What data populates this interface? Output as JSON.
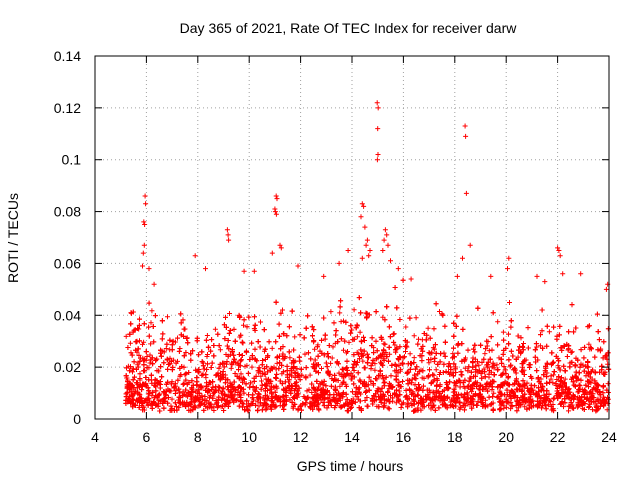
{
  "chart_data": {
    "type": "scatter",
    "title": "Day 365 of 2021, Rate Of TEC Index for receiver darw",
    "xlabel": "GPS time / hours",
    "ylabel": "ROTI / TECUs",
    "xlim": [
      4,
      24
    ],
    "ylim": [
      0,
      0.14
    ],
    "x_ticks": [
      4,
      6,
      8,
      10,
      12,
      14,
      16,
      18,
      20,
      22,
      24
    ],
    "x_tick_labels": [
      "4",
      "6",
      "8",
      "10",
      "12",
      "14",
      "16",
      "18",
      "20",
      "22",
      "24"
    ],
    "y_ticks": [
      0,
      0.02,
      0.04,
      0.06,
      0.08,
      0.1,
      0.12,
      0.14
    ],
    "y_tick_labels": [
      "0",
      "0.02",
      "0.04",
      "0.06",
      "0.08",
      "0.1",
      "0.12",
      "0.14"
    ],
    "grid": true,
    "marker": "+",
    "marker_color": "#ff0000",
    "x_data_range": [
      5.2,
      24
    ],
    "typical_roti_range": [
      0.005,
      0.045
    ],
    "outliers": [
      {
        "x": 5.95,
        "y": 0.086
      },
      {
        "x": 5.97,
        "y": 0.083
      },
      {
        "x": 5.9,
        "y": 0.076
      },
      {
        "x": 5.93,
        "y": 0.075
      },
      {
        "x": 5.92,
        "y": 0.067
      },
      {
        "x": 5.88,
        "y": 0.064
      },
      {
        "x": 5.85,
        "y": 0.059
      },
      {
        "x": 6.1,
        "y": 0.058
      },
      {
        "x": 6.3,
        "y": 0.052
      },
      {
        "x": 7.9,
        "y": 0.063
      },
      {
        "x": 8.3,
        "y": 0.058
      },
      {
        "x": 9.15,
        "y": 0.073
      },
      {
        "x": 9.18,
        "y": 0.071
      },
      {
        "x": 9.2,
        "y": 0.069
      },
      {
        "x": 9.8,
        "y": 0.057
      },
      {
        "x": 10.2,
        "y": 0.057
      },
      {
        "x": 11.05,
        "y": 0.086
      },
      {
        "x": 11.08,
        "y": 0.085
      },
      {
        "x": 11.0,
        "y": 0.081
      },
      {
        "x": 11.02,
        "y": 0.08
      },
      {
        "x": 11.06,
        "y": 0.079
      },
      {
        "x": 11.2,
        "y": 0.067
      },
      {
        "x": 11.25,
        "y": 0.066
      },
      {
        "x": 10.9,
        "y": 0.064
      },
      {
        "x": 11.9,
        "y": 0.059
      },
      {
        "x": 12.9,
        "y": 0.055
      },
      {
        "x": 13.5,
        "y": 0.06
      },
      {
        "x": 13.85,
        "y": 0.065
      },
      {
        "x": 14.4,
        "y": 0.083
      },
      {
        "x": 14.45,
        "y": 0.082
      },
      {
        "x": 14.35,
        "y": 0.078
      },
      {
        "x": 14.5,
        "y": 0.074
      },
      {
        "x": 14.6,
        "y": 0.069
      },
      {
        "x": 14.55,
        "y": 0.067
      },
      {
        "x": 14.7,
        "y": 0.065
      },
      {
        "x": 14.65,
        "y": 0.063
      },
      {
        "x": 14.4,
        "y": 0.062
      },
      {
        "x": 14.98,
        "y": 0.122
      },
      {
        "x": 15.02,
        "y": 0.12
      },
      {
        "x": 15.0,
        "y": 0.112
      },
      {
        "x": 15.01,
        "y": 0.102
      },
      {
        "x": 14.99,
        "y": 0.1
      },
      {
        "x": 15.3,
        "y": 0.073
      },
      {
        "x": 15.35,
        "y": 0.071
      },
      {
        "x": 15.25,
        "y": 0.069
      },
      {
        "x": 15.4,
        "y": 0.067
      },
      {
        "x": 15.2,
        "y": 0.065
      },
      {
        "x": 15.5,
        "y": 0.061
      },
      {
        "x": 15.8,
        "y": 0.058
      },
      {
        "x": 16.3,
        "y": 0.054
      },
      {
        "x": 18.4,
        "y": 0.113
      },
      {
        "x": 18.42,
        "y": 0.109
      },
      {
        "x": 18.45,
        "y": 0.087
      },
      {
        "x": 18.3,
        "y": 0.062
      },
      {
        "x": 18.6,
        "y": 0.067
      },
      {
        "x": 18.1,
        "y": 0.055
      },
      {
        "x": 19.4,
        "y": 0.055
      },
      {
        "x": 20.1,
        "y": 0.062
      },
      {
        "x": 20.05,
        "y": 0.058
      },
      {
        "x": 21.2,
        "y": 0.055
      },
      {
        "x": 21.5,
        "y": 0.053
      },
      {
        "x": 22.0,
        "y": 0.066
      },
      {
        "x": 22.05,
        "y": 0.065
      },
      {
        "x": 22.1,
        "y": 0.063
      },
      {
        "x": 22.2,
        "y": 0.056
      },
      {
        "x": 22.9,
        "y": 0.056
      },
      {
        "x": 23.95,
        "y": 0.052
      },
      {
        "x": 23.9,
        "y": 0.05
      }
    ]
  }
}
